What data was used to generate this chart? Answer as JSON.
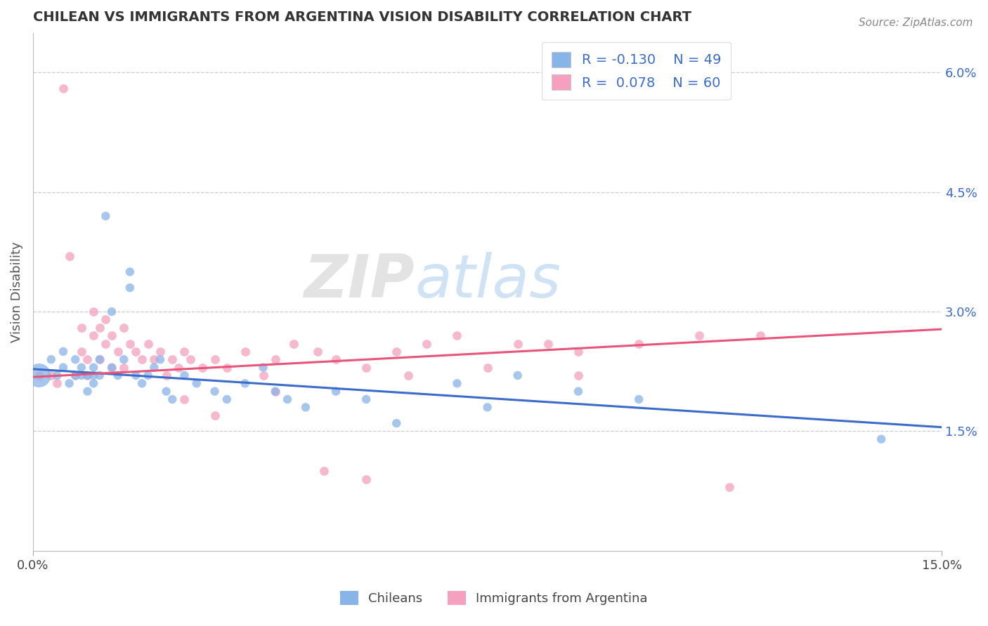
{
  "title": "CHILEAN VS IMMIGRANTS FROM ARGENTINA VISION DISABILITY CORRELATION CHART",
  "source": "Source: ZipAtlas.com",
  "ylabel": "Vision Disability",
  "xlim": [
    0.0,
    0.15
  ],
  "ylim": [
    0.0,
    0.065
  ],
  "yticks": [
    0.015,
    0.03,
    0.045,
    0.06
  ],
  "ytick_labels": [
    "1.5%",
    "3.0%",
    "4.5%",
    "6.0%"
  ],
  "xticks": [
    0.0,
    0.15
  ],
  "xtick_labels": [
    "0.0%",
    "15.0%"
  ],
  "blue_color": "#89B4E8",
  "pink_color": "#F4A0BE",
  "blue_line_color": "#3B6CC9",
  "pink_line_color": "#E8547A",
  "blue_line_start_y": 0.0228,
  "blue_line_end_y": 0.0155,
  "pink_line_start_y": 0.0218,
  "pink_line_end_y": 0.0278,
  "chileans_x": [
    0.001,
    0.003,
    0.004,
    0.005,
    0.005,
    0.006,
    0.007,
    0.007,
    0.008,
    0.008,
    0.009,
    0.009,
    0.01,
    0.01,
    0.01,
    0.011,
    0.011,
    0.012,
    0.013,
    0.013,
    0.014,
    0.015,
    0.016,
    0.016,
    0.017,
    0.018,
    0.019,
    0.02,
    0.021,
    0.022,
    0.023,
    0.025,
    0.027,
    0.03,
    0.032,
    0.035,
    0.038,
    0.04,
    0.042,
    0.045,
    0.05,
    0.055,
    0.06,
    0.07,
    0.075,
    0.08,
    0.09,
    0.1,
    0.14
  ],
  "chileans_y": [
    0.022,
    0.024,
    0.022,
    0.025,
    0.023,
    0.021,
    0.024,
    0.022,
    0.023,
    0.022,
    0.022,
    0.02,
    0.023,
    0.022,
    0.021,
    0.024,
    0.022,
    0.042,
    0.03,
    0.023,
    0.022,
    0.024,
    0.035,
    0.033,
    0.022,
    0.021,
    0.022,
    0.023,
    0.024,
    0.02,
    0.019,
    0.022,
    0.021,
    0.02,
    0.019,
    0.021,
    0.023,
    0.02,
    0.019,
    0.018,
    0.02,
    0.019,
    0.016,
    0.021,
    0.018,
    0.022,
    0.02,
    0.019,
    0.014
  ],
  "chileans_sizes": [
    600,
    80,
    80,
    80,
    80,
    80,
    80,
    80,
    80,
    80,
    80,
    80,
    80,
    80,
    80,
    80,
    80,
    80,
    80,
    80,
    80,
    80,
    80,
    80,
    80,
    80,
    80,
    80,
    80,
    80,
    80,
    80,
    80,
    80,
    80,
    80,
    80,
    80,
    80,
    80,
    80,
    80,
    80,
    80,
    80,
    80,
    80,
    80,
    80
  ],
  "argentina_x": [
    0.001,
    0.003,
    0.004,
    0.005,
    0.006,
    0.007,
    0.008,
    0.008,
    0.009,
    0.009,
    0.01,
    0.01,
    0.011,
    0.011,
    0.012,
    0.012,
    0.013,
    0.013,
    0.014,
    0.015,
    0.015,
    0.016,
    0.017,
    0.018,
    0.019,
    0.02,
    0.021,
    0.022,
    0.023,
    0.024,
    0.025,
    0.026,
    0.028,
    0.03,
    0.032,
    0.035,
    0.038,
    0.04,
    0.043,
    0.047,
    0.05,
    0.055,
    0.06,
    0.065,
    0.07,
    0.08,
    0.085,
    0.09,
    0.1,
    0.11,
    0.12,
    0.025,
    0.03,
    0.04,
    0.048,
    0.055,
    0.062,
    0.075,
    0.09,
    0.115
  ],
  "argentina_y": [
    0.022,
    0.022,
    0.021,
    0.058,
    0.037,
    0.022,
    0.025,
    0.028,
    0.022,
    0.024,
    0.027,
    0.03,
    0.024,
    0.028,
    0.026,
    0.029,
    0.023,
    0.027,
    0.025,
    0.023,
    0.028,
    0.026,
    0.025,
    0.024,
    0.026,
    0.024,
    0.025,
    0.022,
    0.024,
    0.023,
    0.025,
    0.024,
    0.023,
    0.024,
    0.023,
    0.025,
    0.022,
    0.024,
    0.026,
    0.025,
    0.024,
    0.023,
    0.025,
    0.026,
    0.027,
    0.026,
    0.026,
    0.025,
    0.026,
    0.027,
    0.027,
    0.019,
    0.017,
    0.02,
    0.01,
    0.009,
    0.022,
    0.023,
    0.022,
    0.008
  ]
}
